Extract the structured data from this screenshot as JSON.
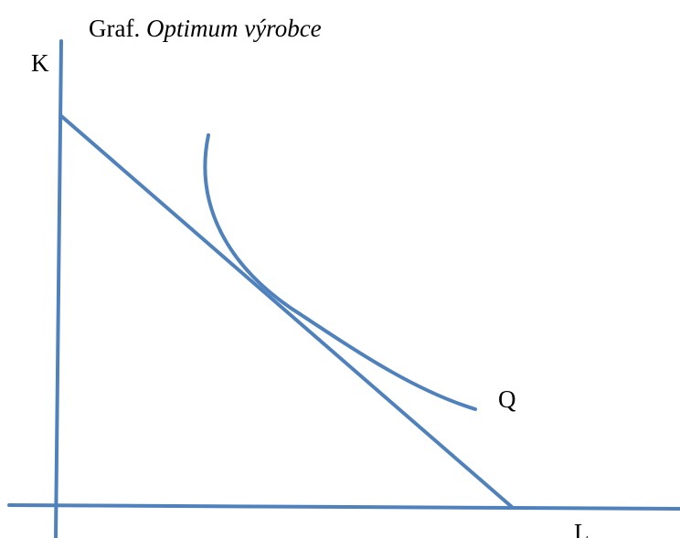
{
  "title": {
    "prefix": "Graf.",
    "name": "Optimum výrobce"
  },
  "axes": {
    "y": "K",
    "x": "L"
  },
  "curve": {
    "label": "Q"
  }
}
